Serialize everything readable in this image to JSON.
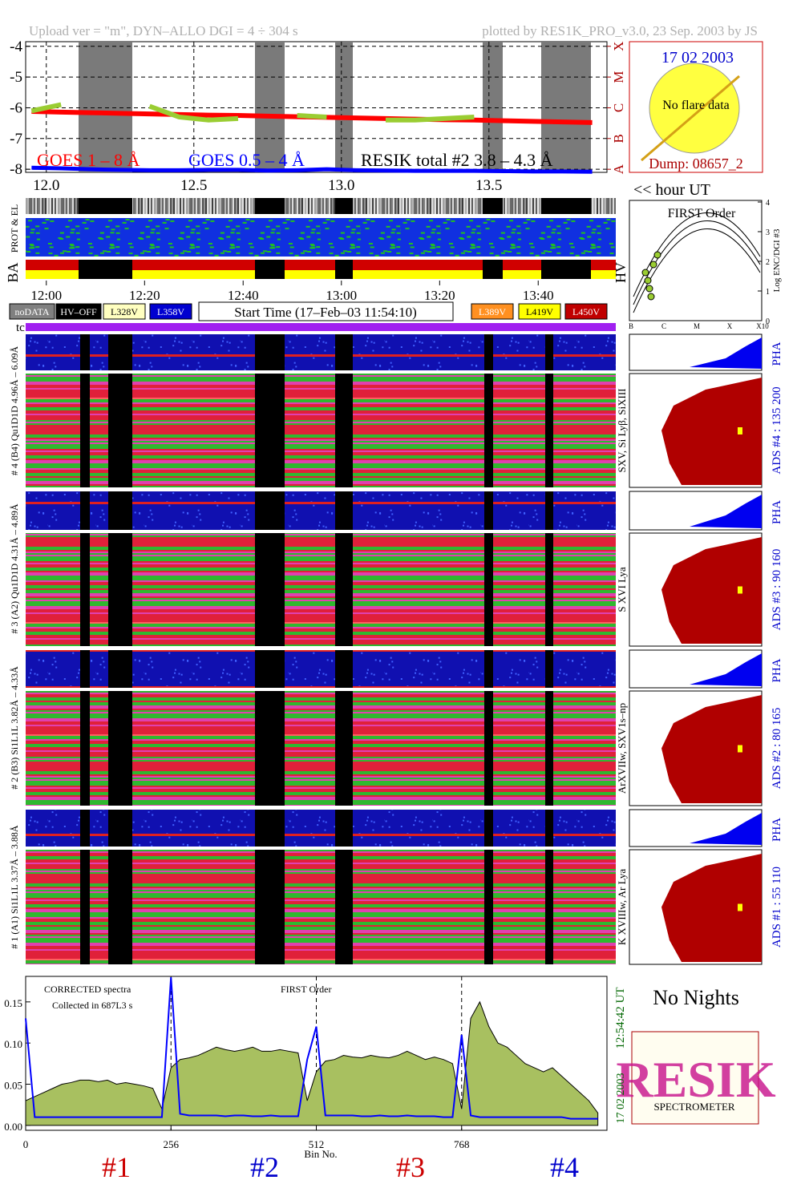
{
  "header": {
    "left": "Upload ver = \"m\", DYN–ALLO DGI =   4 ÷ 304 s",
    "right": "plotted by RES1K_PRO_v3.0, 23 Sep. 2003 by JS"
  },
  "chart_data": [
    {
      "type": "line",
      "x": [
        11.95,
        12.05,
        12.15,
        12.25,
        12.35,
        12.45,
        12.55,
        12.65,
        12.75,
        12.85,
        12.95,
        13.05,
        13.15,
        13.25,
        13.35,
        13.45,
        13.55,
        13.65,
        13.75,
        13.85
      ],
      "series": [
        {
          "name": "GOES 1 – 8 Å",
          "color": "#ff0000",
          "values": [
            -6.12,
            -6.14,
            -6.16,
            -6.18,
            -6.2,
            -6.22,
            -6.24,
            -6.25,
            -6.27,
            -6.29,
            -6.31,
            -6.33,
            -6.35,
            -6.37,
            -6.39,
            -6.4,
            -6.42,
            -6.44,
            -6.46,
            -6.48
          ]
        },
        {
          "name": "GOES 0.5 – 4 Å",
          "color": "#0000ff",
          "values": [
            -7.95,
            -7.97,
            -8.0,
            -8.02,
            -8.03,
            -8.03,
            -8.02,
            -8.02,
            -8.04,
            -8.03,
            -8.0,
            -8.03,
            -8.04,
            -8.05,
            -8.05,
            -8.05,
            -8.06,
            -8.07,
            -8.07,
            -8.08
          ]
        },
        {
          "name": "RESIK total #2  3.8 – 4.3 Å",
          "color": "#9acd32",
          "values": [
            -6.1,
            -5.9,
            null,
            null,
            -5.95,
            -6.3,
            -6.4,
            -6.35,
            null,
            -6.25,
            -6.3,
            null,
            -6.4,
            -6.4,
            -6.35,
            -6.3,
            null,
            -6.0,
            null,
            null
          ]
        }
      ],
      "xlim": [
        11.93,
        13.9
      ],
      "ylim": [
        -8.1,
        -3.85
      ],
      "xticks": [
        {
          "value": 12,
          "label": "12.0"
        },
        12.5,
        {
          "value": 13,
          "label": "13.0"
        },
        13.5
      ],
      "yticks": [
        -4,
        -5,
        -6,
        -7,
        -8
      ],
      "y2lim": [
        -8.1,
        -3.85
      ],
      "y2ticks": [
        {
          "value": -4,
          "label": "X"
        },
        {
          "value": -5,
          "label": "M"
        },
        {
          "value": -6,
          "label": "C"
        },
        {
          "value": -7,
          "label": "B"
        },
        {
          "value": -8,
          "label": "A"
        }
      ],
      "grid": true
    },
    {
      "type": "line",
      "x": [
        0,
        16,
        32,
        48,
        64,
        80,
        96,
        112,
        128,
        144,
        160,
        176,
        192,
        208,
        224,
        240,
        256,
        272,
        288,
        304,
        320,
        336,
        352,
        368,
        384,
        400,
        416,
        432,
        448,
        464,
        480,
        496,
        512,
        528,
        544,
        560,
        576,
        592,
        608,
        624,
        640,
        656,
        672,
        688,
        704,
        720,
        736,
        752,
        768,
        784,
        800,
        816,
        832,
        848,
        864,
        880,
        896,
        912,
        928,
        944,
        960,
        976,
        992,
        1008
      ],
      "series": [
        {
          "name": "CORRECTED spectra",
          "color": "#a8c060",
          "values": [
            0.03,
            0.035,
            0.04,
            0.045,
            0.05,
            0.052,
            0.055,
            0.055,
            0.053,
            0.055,
            0.05,
            0.052,
            0.05,
            0.048,
            0.045,
            0.02,
            0.07,
            0.08,
            0.082,
            0.085,
            0.09,
            0.095,
            0.092,
            0.09,
            0.092,
            0.095,
            0.09,
            0.09,
            0.092,
            0.09,
            0.088,
            0.03,
            0.065,
            0.078,
            0.08,
            0.085,
            0.083,
            0.082,
            0.085,
            0.083,
            0.082,
            0.085,
            0.09,
            0.085,
            0.08,
            0.083,
            0.08,
            0.075,
            0.02,
            0.13,
            0.15,
            0.12,
            0.1,
            0.095,
            0.085,
            0.075,
            0.07,
            0.065,
            0.07,
            0.06,
            0.05,
            0.04,
            0.03,
            0.015
          ]
        },
        {
          "name": "FIRST Order",
          "color": "#0000ff",
          "values": [
            0.13,
            0.01,
            0.01,
            0.01,
            0.01,
            0.01,
            0.01,
            0.01,
            0.01,
            0.01,
            0.01,
            0.01,
            0.01,
            0.01,
            0.01,
            0.01,
            0.18,
            0.014,
            0.012,
            0.012,
            0.012,
            0.012,
            0.011,
            0.012,
            0.012,
            0.011,
            0.011,
            0.012,
            0.011,
            0.011,
            0.011,
            0.08,
            0.12,
            0.012,
            0.012,
            0.012,
            0.012,
            0.011,
            0.011,
            0.012,
            0.011,
            0.011,
            0.012,
            0.011,
            0.011,
            0.011,
            0.01,
            0.01,
            0.11,
            0.012,
            0.01,
            0.01,
            0.01,
            0.01,
            0.01,
            0.01,
            0.01,
            0.01,
            0.01,
            0.01,
            0.008,
            0.008,
            0.008,
            0.008
          ]
        }
      ],
      "xlim": [
        0,
        1024
      ],
      "ylim": [
        -0.006,
        0.181
      ],
      "xticks": [
        0,
        256,
        512,
        768
      ],
      "yticks": [
        {
          "value": 0,
          "label": "0.00"
        },
        {
          "value": 0.05,
          "label": "0.05"
        },
        {
          "value": 0.1,
          "label": "0.10"
        },
        {
          "value": 0.15,
          "label": "0.15"
        }
      ],
      "xlabel": "Bin No.",
      "annotations": [
        "CORRECTED spectra",
        "Collected in  687L3 s",
        "FIRST Order"
      ],
      "time_stamp": "12:54:42 UT",
      "date_stamp": "17 02 2003",
      "channel_labels": [
        "#1",
        "#2",
        "#3",
        "#4"
      ]
    }
  ],
  "sun": {
    "date": "17 02 2003",
    "note": "No flare data",
    "dump": "Dump: 08657_2"
  },
  "hour_label": "<< hour UT",
  "strip_labels": [
    "PROT & EL",
    "BA",
    "HV"
  ],
  "time_ticks": [
    {
      "value": 12.0,
      "label": "12:00"
    },
    {
      "value": 12.333,
      "label": "12:20"
    },
    {
      "value": 12.667,
      "label": "12:40"
    },
    {
      "value": 13.0,
      "label": "13:00"
    },
    {
      "value": 13.333,
      "label": "13:20"
    },
    {
      "value": 13.667,
      "label": "13:40"
    }
  ],
  "legend_buttons": [
    "noDATA",
    "HV–OFF",
    "L328V",
    "L358V",
    "L389V",
    "L419V",
    "L450V"
  ],
  "start_time": "Start Time (17–Feb–03 11:54:10)",
  "order_plot": {
    "title": "FIRST Order",
    "ylabel": "Log ENC/DGI #3",
    "yticks": [
      0,
      1,
      2,
      3,
      4
    ],
    "xlabels": [
      "B",
      "C",
      "M",
      "X",
      "X10"
    ]
  },
  "tc": "tc",
  "channels": [
    {
      "left": "# 4 (B4) Qu1D1D 4.96Å – 6.09Å",
      "species": "SXV, Si Lyβ, SiXIII",
      "ads": "ADS #4 :  135 200",
      "pha": "PHA"
    },
    {
      "left": "# 3 (A2) Qu1D1D 4.31Å – 4.89Å",
      "species": "S XVI Lya",
      "ads": "ADS #3 :   90 160",
      "pha": "PHA"
    },
    {
      "left": "# 2 (B3) Si1L1L 3.82Å – 4.33Å",
      "species": "ArXVIIw, SXV1s–np",
      "ads": "ADS #2 :   80 165",
      "pha": "PHA"
    },
    {
      "left": "# 1 (A1) Si1L1L 3.37Å – 3.88Å",
      "species": "K XVIIIw, Ar Lya",
      "ads": "ADS #1 :   55 110",
      "pha": "PHA"
    }
  ],
  "no_nights": "No Nights",
  "logo": {
    "big": "RESIK",
    "text": "SPECTROMETER"
  }
}
